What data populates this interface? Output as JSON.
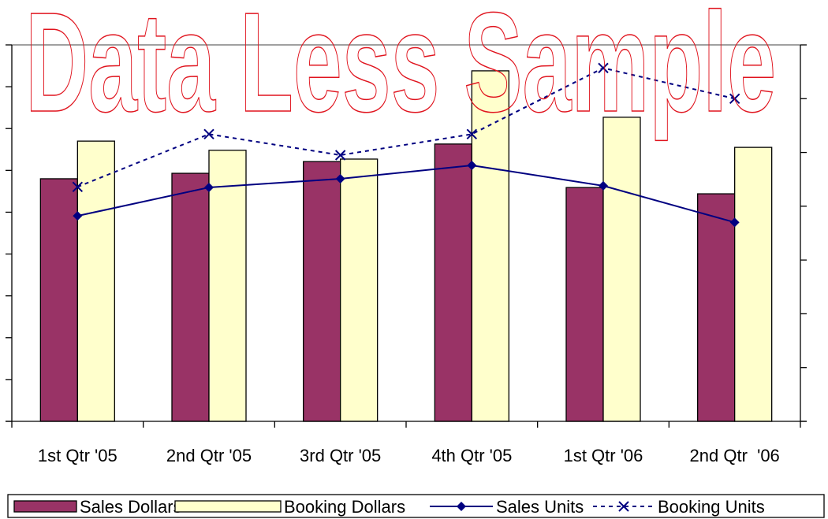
{
  "chart_data": {
    "type": "bar",
    "watermark": "Data Less Sample",
    "categories": [
      "1st Qtr '05",
      "2nd Qtr '05",
      "3rd Qtr '05",
      "4th Qtr '05",
      "1st Qtr '06",
      "2nd Qtr  '06"
    ],
    "series": [
      {
        "name": "Sales Dollars",
        "type": "bar",
        "color": "#993366",
        "values": [
          5.8,
          5.93,
          6.21,
          6.63,
          5.59,
          5.44
        ]
      },
      {
        "name": "Booking Dollars",
        "type": "bar",
        "color": "#ffffcc",
        "values": [
          6.7,
          6.48,
          6.27,
          8.38,
          7.27,
          6.55
        ]
      },
      {
        "name": "Sales Units",
        "type": "line",
        "color": "#000080",
        "marker": "diamond",
        "axis": "y2",
        "values": [
          3.82,
          4.35,
          4.51,
          4.76,
          4.38,
          3.7
        ]
      },
      {
        "name": "Booking Units",
        "type": "line",
        "color": "#000080",
        "marker": "x",
        "dashed": true,
        "axis": "y2",
        "values": [
          4.36,
          5.34,
          4.95,
          5.34,
          6.57,
          6.0
        ]
      }
    ],
    "ylim": [
      0,
      9
    ],
    "yticks": [
      0,
      1,
      2,
      3,
      4,
      5,
      6,
      7,
      8,
      9
    ],
    "y2lim": [
      0,
      7
    ],
    "y2ticks": [
      0,
      1,
      2,
      3,
      4,
      5,
      6,
      7
    ],
    "legend": "bottom"
  }
}
